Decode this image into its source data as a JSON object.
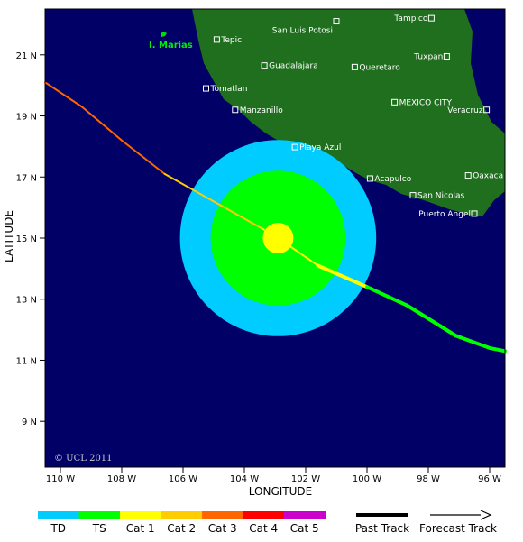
{
  "map": {
    "lon_range": [
      -110.5,
      -95.5
    ],
    "lat_range": [
      7.5,
      22.5
    ],
    "x_ticks": [
      {
        "lon": -110,
        "label": "110 W"
      },
      {
        "lon": -108,
        "label": "108 W"
      },
      {
        "lon": -106,
        "label": "106 W"
      },
      {
        "lon": -104,
        "label": "104 W"
      },
      {
        "lon": -102,
        "label": "102 W"
      },
      {
        "lon": -100,
        "label": "100 W"
      },
      {
        "lon": -98,
        "label": "98 W"
      },
      {
        "lon": -96,
        "label": "96 W"
      }
    ],
    "y_ticks": [
      {
        "lat": 21,
        "label": "21 N"
      },
      {
        "lat": 19,
        "label": "19 N"
      },
      {
        "lat": 17,
        "label": "17 N"
      },
      {
        "lat": 15,
        "label": "15 N"
      },
      {
        "lat": 13,
        "label": "13 N"
      },
      {
        "lat": 11,
        "label": "11 N"
      },
      {
        "lat": 9,
        "label": "9 N"
      }
    ],
    "xlabel": "LONGITUDE",
    "ylabel": "LATITUDE",
    "copyright": "© UCL 2011",
    "island_label": "I. Marias",
    "cities": [
      {
        "name": "Tampico",
        "lon": -97.9,
        "lat": 22.2
      },
      {
        "name": "San Luis Potosi",
        "lon": -101.0,
        "lat": 22.1
      },
      {
        "name": "Tepic",
        "lon": -104.9,
        "lat": 21.5
      },
      {
        "name": "Tuxpan",
        "lon": -97.4,
        "lat": 20.95
      },
      {
        "name": "Guadalajara",
        "lon": -103.35,
        "lat": 20.65
      },
      {
        "name": "Queretaro",
        "lon": -100.4,
        "lat": 20.6
      },
      {
        "name": "Tomatlan",
        "lon": -105.25,
        "lat": 19.9
      },
      {
        "name": "MEXICO CITY",
        "lon": -99.1,
        "lat": 19.45
      },
      {
        "name": "Manzanillo",
        "lon": -104.3,
        "lat": 19.2
      },
      {
        "name": "Veracruz",
        "lon": -96.1,
        "lat": 19.2
      },
      {
        "name": "Playa Azul",
        "lon": -102.35,
        "lat": 17.98
      },
      {
        "name": "Oaxaca",
        "lon": -96.7,
        "lat": 17.05
      },
      {
        "name": "Acapulco",
        "lon": -99.9,
        "lat": 16.95
      },
      {
        "name": "San Nicolas",
        "lon": -98.5,
        "lat": 16.4
      },
      {
        "name": "Puerto Angel",
        "lon": -96.5,
        "lat": 15.8
      }
    ],
    "storm_center": {
      "lon": -102.9,
      "lat": 15.0
    },
    "wind_fields": [
      {
        "category": "TD",
        "radius_deg": 3.2
      },
      {
        "category": "TS",
        "radius_deg": 2.2
      },
      {
        "category": "Cat 1",
        "radius_deg": 0.5
      }
    ],
    "track": [
      {
        "lon": -110.5,
        "lat": 20.1,
        "category": "Cat 3"
      },
      {
        "lon": -109.3,
        "lat": 19.3,
        "category": "Cat 3"
      },
      {
        "lon": -108.0,
        "lat": 18.2,
        "category": "Cat 3"
      },
      {
        "lon": -106.6,
        "lat": 17.1,
        "category": "Cat 2"
      },
      {
        "lon": -105.0,
        "lat": 16.2,
        "category": "Cat 2"
      },
      {
        "lon": -103.4,
        "lat": 15.3,
        "category": "Cat 1"
      },
      {
        "lon": -102.9,
        "lat": 15.0,
        "category": "Cat 1"
      },
      {
        "lon": -101.6,
        "lat": 14.1,
        "category": "Cat 1"
      },
      {
        "lon": -100.0,
        "lat": 13.4,
        "category": "TS"
      },
      {
        "lon": -98.7,
        "lat": 12.8,
        "category": "TS"
      },
      {
        "lon": -97.1,
        "lat": 11.8,
        "category": "TS"
      },
      {
        "lon": -96.0,
        "lat": 11.4,
        "category": "TS"
      },
      {
        "lon": -95.5,
        "lat": 11.3,
        "category": "TS"
      }
    ]
  },
  "legend": {
    "scale": [
      {
        "label": "TD",
        "color": "#00ccff"
      },
      {
        "label": "TS",
        "color": "#00ff00"
      },
      {
        "label": "Cat 1",
        "color": "#ffff00"
      },
      {
        "label": "Cat 2",
        "color": "#ffcc00"
      },
      {
        "label": "Cat 3",
        "color": "#ff6600"
      },
      {
        "label": "Cat 4",
        "color": "#ff0000"
      },
      {
        "label": "Cat 5",
        "color": "#cc00cc"
      }
    ],
    "past_track": "Past Track",
    "forecast_track": "Forecast Track"
  },
  "colors": {
    "ocean": "#000066",
    "land": "#1f6f1f",
    "island": "#00dd00"
  }
}
